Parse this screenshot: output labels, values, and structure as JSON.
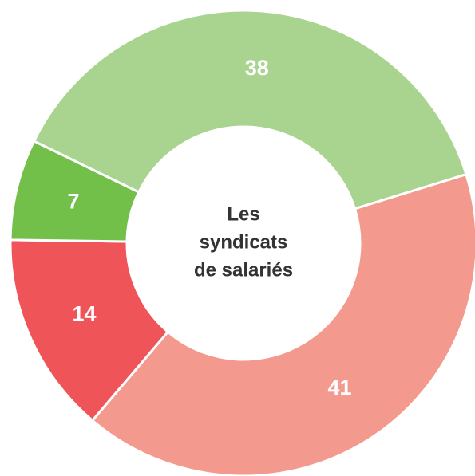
{
  "chart_data": {
    "type": "donut",
    "center_label": [
      "Les",
      "syndicats",
      "de salariés"
    ],
    "values": [
      38,
      41,
      14,
      7
    ],
    "colors": [
      "#a9d48f",
      "#f4998e",
      "#ef5459",
      "#72bf4a"
    ]
  }
}
